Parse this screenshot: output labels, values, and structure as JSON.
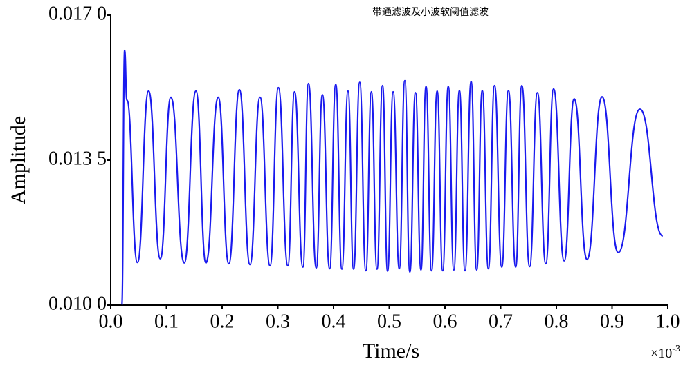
{
  "chart_data": {
    "type": "line",
    "title": "带通滤波及小波软阈值滤波",
    "x_label": "Time/s",
    "y_label": "Amplitude",
    "x_multiplier": {
      "base": "×10",
      "exponent": "-3"
    },
    "color": "#1a1aee",
    "xlim": [
      0,
      1.0
    ],
    "xticks": [
      {
        "value": 0,
        "label": "0.0"
      },
      0.1,
      0.2,
      0.3,
      0.4,
      0.5,
      0.6,
      0.7,
      0.8,
      0.9,
      {
        "value": 1.0,
        "label": "1.0"
      }
    ],
    "ylim": [
      0.01,
      0.017
    ],
    "yticks": [
      {
        "value": 0.01,
        "label": "0.010 0"
      },
      {
        "value": 0.0135,
        "label": "0.013 5"
      },
      {
        "value": 0.017,
        "label": "0.017 0"
      }
    ],
    "x": [
      0.02,
      0.025,
      0.029,
      0.048,
      0.068,
      0.089,
      0.108,
      0.132,
      0.153,
      0.171,
      0.193,
      0.212,
      0.231,
      0.25,
      0.268,
      0.286,
      0.301,
      0.318,
      0.33,
      0.345,
      0.355,
      0.369,
      0.38,
      0.393,
      0.404,
      0.415,
      0.426,
      0.436,
      0.447,
      0.458,
      0.468,
      0.478,
      0.488,
      0.497,
      0.507,
      0.518,
      0.528,
      0.537,
      0.547,
      0.557,
      0.566,
      0.576,
      0.586,
      0.596,
      0.606,
      0.616,
      0.626,
      0.636,
      0.647,
      0.657,
      0.667,
      0.678,
      0.689,
      0.702,
      0.714,
      0.727,
      0.738,
      0.752,
      0.766,
      0.781,
      0.795,
      0.814,
      0.832,
      0.855,
      0.882,
      0.911,
      0.95,
      0.991
    ],
    "values": [
      0.01,
      0.01615,
      0.01495,
      0.01103,
      0.01517,
      0.01112,
      0.01502,
      0.01102,
      0.01517,
      0.01102,
      0.01502,
      0.011,
      0.0152,
      0.01098,
      0.01502,
      0.01095,
      0.01525,
      0.01095,
      0.01515,
      0.01092,
      0.01535,
      0.0109,
      0.01508,
      0.01088,
      0.01533,
      0.01087,
      0.01517,
      0.01087,
      0.01538,
      0.01083,
      0.01515,
      0.01087,
      0.0153,
      0.01082,
      0.01515,
      0.01088,
      0.01542,
      0.0108,
      0.01513,
      0.01085,
      0.01528,
      0.01083,
      0.01517,
      0.01083,
      0.01528,
      0.01085,
      0.01518,
      0.01083,
      0.0154,
      0.01085,
      0.01518,
      0.01088,
      0.0153,
      0.01092,
      0.01518,
      0.01092,
      0.0153,
      0.01093,
      0.01513,
      0.011,
      0.01522,
      0.01107,
      0.01498,
      0.0111,
      0.01503,
      0.01127,
      0.01473,
      0.01167
    ]
  }
}
